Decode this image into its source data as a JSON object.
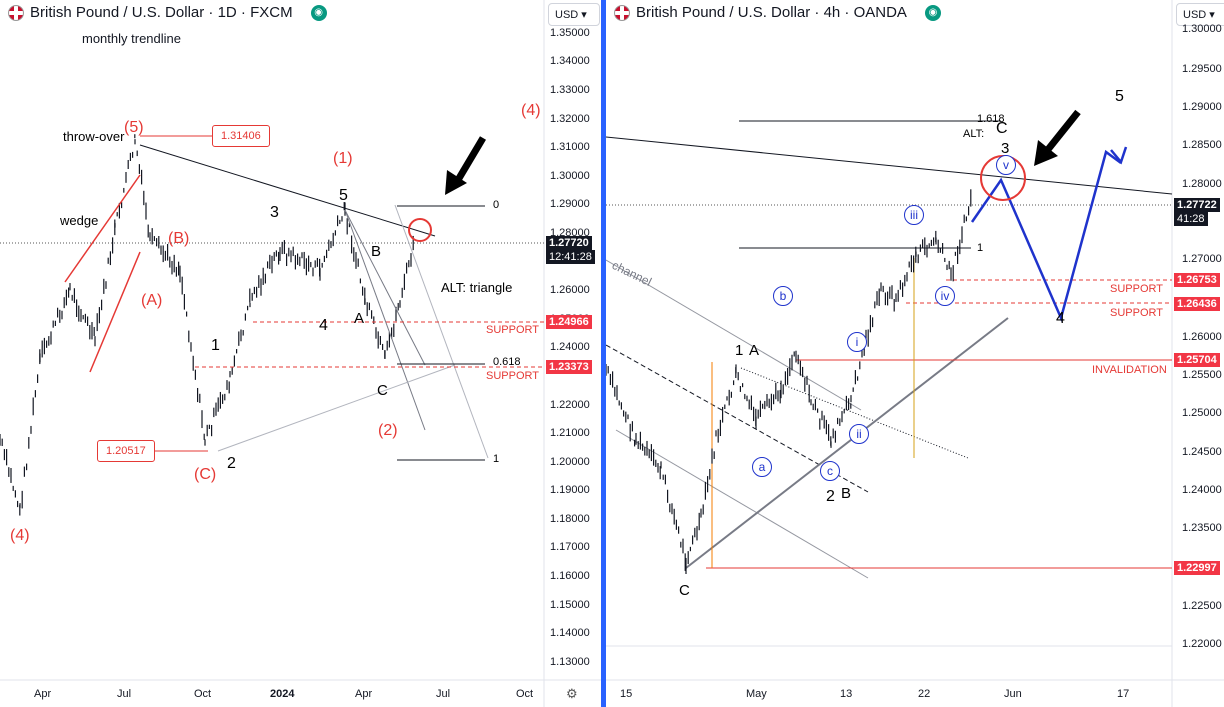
{
  "left": {
    "title": "British Pound / U.S. Dollar · 1D · FXCM",
    "currency": "USD",
    "prices": [
      "1.35000",
      "1.34000",
      "1.33000",
      "1.32000",
      "1.31000",
      "1.30000",
      "1.29000",
      "1.28000",
      "1.26000",
      "1.25000",
      "1.24000",
      "1.22000",
      "1.21000",
      "1.20000",
      "1.19000",
      "1.18000",
      "1.17000",
      "1.16000",
      "1.15000",
      "1.14000",
      "1.13000"
    ],
    "badges": {
      "last": "1.27720",
      "countdown": "12:41:28",
      "support1": "1.24966",
      "support2": "1.23373"
    },
    "time": [
      "Apr",
      "Jul",
      "Oct",
      "2024",
      "Apr",
      "Jul",
      "Oct"
    ],
    "annotations": {
      "monthly": "monthly trendline",
      "throw": "throw-over",
      "wedge": "wedge",
      "w5red": "(5)",
      "box1": "1.31406",
      "box2": "1.20517",
      "wB": "(B)",
      "wA": "(A)",
      "wC": "(C)",
      "w4": "(4)",
      "w4b": "(4)",
      "w1red": "(1)",
      "w2red": "(2)",
      "n1": "1",
      "n2": "2",
      "n3": "3",
      "n4": "4",
      "n5": "5",
      "lA": "A",
      "lB": "B",
      "lC": "C",
      "alt": "ALT: triangle",
      "support": "SUPPORT",
      "fib0": "0",
      "fib618": "0.618",
      "fib1": "1"
    }
  },
  "right": {
    "title": "British Pound / U.S. Dollar · 4h · OANDA",
    "currency": "USD",
    "prices": [
      "1.30000",
      "1.29500",
      "1.29000",
      "1.28500",
      "1.28000",
      "1.27000",
      "1.26000",
      "1.25500",
      "1.25000",
      "1.24500",
      "1.24000",
      "1.23500",
      "1.22500",
      "1.22000"
    ],
    "badges": {
      "last": "1.27722",
      "countdown": "41:28",
      "s1": "1.26753",
      "s2": "1.26436",
      "inv": "1.25704",
      "low": "1.22997"
    },
    "time": [
      "15",
      "May",
      "13",
      "22",
      "Jun",
      "17"
    ],
    "annotations": {
      "channel": "channel",
      "fib1618": "1.618",
      "alt": "ALT:",
      "C": "C",
      "three": "3",
      "five": "5",
      "four": "4",
      "one": "1",
      "support": "SUPPORT",
      "invalid": "INVALIDATION",
      "one_A_1": "1",
      "one_A_A": "A",
      "two": "2",
      "B": "B",
      "Cbottom": "C",
      "a": "a",
      "b": "b",
      "c": "c",
      "i": "i",
      "ii": "ii",
      "iii": "iii",
      "iv": "iv",
      "v": "v"
    }
  },
  "colors": {
    "red": "#e53935",
    "blue": "#1f33cc",
    "badge_black": "#131722",
    "badge_red": "#f23645"
  }
}
